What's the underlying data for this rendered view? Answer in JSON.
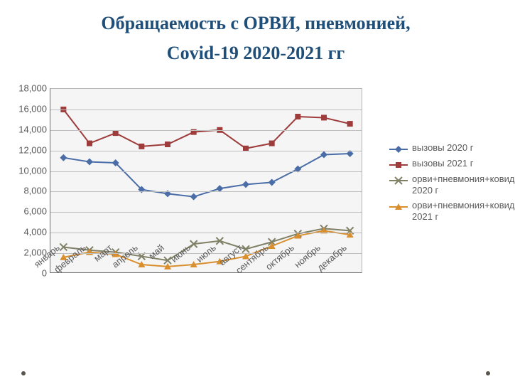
{
  "title_line1": "Обращаемость с ОРВИ, пневмонией,",
  "title_line2": "Covid-19 2020-2021 гг",
  "title_color": "#1f4e79",
  "title_fontsize": 26,
  "chart": {
    "type": "line",
    "background_color": "#f5f5f5",
    "grid_color": "#bfbfbf",
    "axis_color": "#707070",
    "label_color": "#595959",
    "label_fontsize": 13,
    "ylim": [
      0,
      18000
    ],
    "ytick_step": 2000,
    "yticks": [
      "0",
      "2,000",
      "4,000",
      "6,000",
      "8,000",
      "10,000",
      "12,000",
      "14,000",
      "16,000",
      "18,000"
    ],
    "categories": [
      "январь",
      "февраль",
      "март",
      "апрель",
      "май",
      "июнь",
      "июль",
      "август",
      "сентябрь",
      "октябрь",
      "ноябрь",
      "декабрь"
    ],
    "line_width": 2,
    "marker_size": 4,
    "series": [
      {
        "name": "вызовы 2020 г",
        "color": "#4a6da7",
        "marker": "diamond",
        "values": [
          11300,
          10900,
          10800,
          8200,
          7800,
          7500,
          8300,
          8700,
          8900,
          10200,
          11600,
          11700
        ]
      },
      {
        "name": "вызовы 2021 г",
        "color": "#9e3b3b",
        "marker": "square",
        "values": [
          16000,
          12700,
          13700,
          12400,
          12600,
          13800,
          14000,
          12200,
          12700,
          15300,
          15200,
          14600
        ]
      },
      {
        "name": "орви+пневмония+ковид 2020 г",
        "color": "#808066",
        "marker": "x",
        "values": [
          2600,
          2300,
          2100,
          1700,
          1300,
          2900,
          3200,
          2400,
          3100,
          3900,
          4400,
          4200
        ]
      },
      {
        "name": "орви+пневмония+ковид 2021 г",
        "color": "#d98f2e",
        "marker": "triangle",
        "values": [
          1600,
          2100,
          1900,
          900,
          700,
          900,
          1200,
          1700,
          2700,
          3700,
          4200,
          3800
        ]
      }
    ]
  }
}
